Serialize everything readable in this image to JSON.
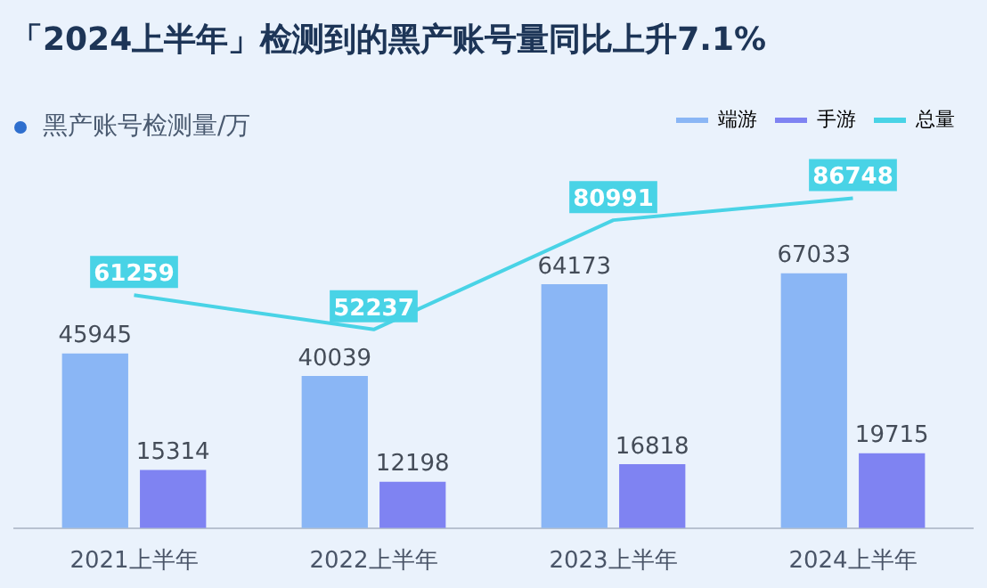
{
  "chart_data": {
    "type": "bar",
    "title": "「2024上半年」检测到的黑产账号量同比上升7.1%",
    "subtitle": "黑产账号检测量/万",
    "categories": [
      "2021上半年",
      "2022上半年",
      "2023上半年",
      "2024上半年"
    ],
    "series": [
      {
        "name": "端游",
        "color": "#8ab6f5",
        "values": [
          45945,
          40039,
          64173,
          67033
        ]
      },
      {
        "name": "手游",
        "color": "#7f83f2",
        "values": [
          15314,
          12198,
          16818,
          19715
        ]
      },
      {
        "name": "总量",
        "type": "line",
        "color": "#49d3e6",
        "values": [
          61259,
          52237,
          80991,
          86748
        ]
      }
    ],
    "tick_labels": "x",
    "data_labels": true,
    "legend": "top right",
    "marker": "none"
  }
}
